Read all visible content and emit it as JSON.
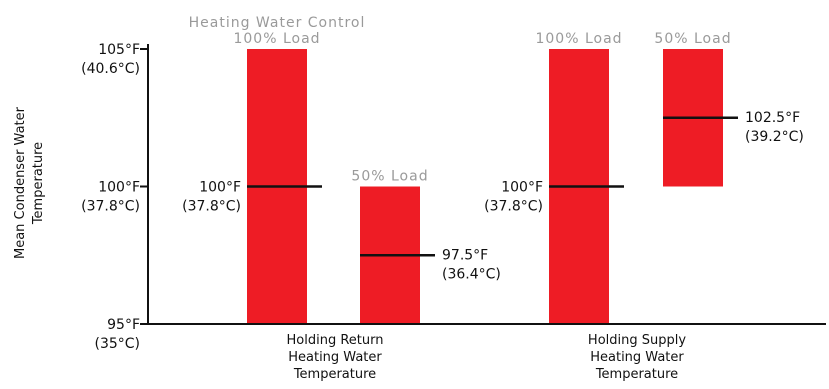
{
  "chart_data": {
    "type": "bar",
    "title": "",
    "ylabel": [
      "Mean Condenser Water",
      "Temperature"
    ],
    "ylim": [
      95,
      105
    ],
    "yticks": [
      {
        "value": 105,
        "f": "105°F",
        "c": "(40.6°C)"
      },
      {
        "value": 100,
        "f": "100°F",
        "c": "(37.8°C)"
      },
      {
        "value": 95,
        "f": "95°F",
        "c": "(35°C)"
      }
    ],
    "colors": {
      "bar": "#ee1c25",
      "mean_line": "#111111",
      "axis": "#111111",
      "load_text": "#9a9a9a"
    },
    "groups": [
      {
        "label": [
          "Holding Return",
          "Heating Water",
          "Temperature"
        ],
        "bars": [
          {
            "load": "100% Load",
            "top_note": "Heating Water Control",
            "low": 95,
            "high": 105,
            "mean": 100,
            "mean_f": "100°F",
            "mean_c": "(37.8°C)",
            "label_side": "left"
          },
          {
            "load": "50% Load",
            "top_note": "",
            "low": 95,
            "high": 100,
            "mean": 97.5,
            "mean_f": "97.5°F",
            "mean_c": "(36.4°C)",
            "label_side": "right"
          }
        ]
      },
      {
        "label": [
          "Holding Supply",
          "Heating Water",
          "Temperature"
        ],
        "bars": [
          {
            "load": "100% Load",
            "top_note": "",
            "low": 95,
            "high": 105,
            "mean": 100,
            "mean_f": "100°F",
            "mean_c": "(37.8°C)",
            "label_side": "left"
          },
          {
            "load": "50% Load",
            "top_note": "",
            "low": 100,
            "high": 105,
            "mean": 102.5,
            "mean_f": "102.5°F",
            "mean_c": "(39.2°C)",
            "label_side": "right"
          }
        ]
      }
    ]
  }
}
